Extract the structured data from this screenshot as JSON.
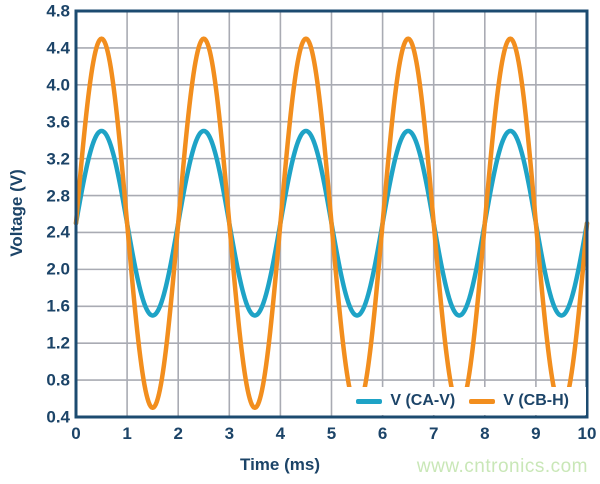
{
  "watermark": {
    "text": "www.cntronics.com",
    "color": "#c9e7b7"
  },
  "chart_data": {
    "type": "line",
    "title": "",
    "xlabel": "Time (ms)",
    "ylabel": "Voltage (V)",
    "xlim": [
      0,
      10
    ],
    "ylim": [
      0.4,
      4.8
    ],
    "x_ticks": [
      0,
      1,
      2,
      3,
      4,
      5,
      6,
      7,
      8,
      9,
      10
    ],
    "y_ticks": [
      0.4,
      0.8,
      1.2,
      1.6,
      2.0,
      2.4,
      2.8,
      3.2,
      3.6,
      4.0,
      4.4,
      4.8
    ],
    "grid": true,
    "legend_position": "inside-bottom-right",
    "colors": {
      "axis": "#1c4b70",
      "grid": "#a9abb3",
      "tick_text": "#1c4468",
      "background": "#ffffff"
    },
    "x_sample_ms": [
      0,
      0.25,
      0.5,
      0.75,
      1,
      1.25,
      1.5,
      1.75,
      2,
      2.25,
      2.5,
      2.75,
      3,
      3.25,
      3.5,
      3.75,
      4,
      4.25,
      4.5,
      4.75,
      5,
      5.25,
      5.5,
      5.75,
      6,
      6.25,
      6.5,
      6.75,
      7,
      7.25,
      7.5,
      7.75,
      8,
      8.25,
      8.5,
      8.75,
      9,
      9.25,
      9.5,
      9.75,
      10
    ],
    "series": [
      {
        "name": "V (CA-V)",
        "color": "#1ea3c6",
        "waveform": "sine",
        "offset_v": 2.5,
        "amplitude_v": 1.0,
        "period_ms": 2.0,
        "phase_deg": 0,
        "values": [
          2.5,
          3.207,
          3.5,
          3.207,
          2.5,
          1.793,
          1.5,
          1.793,
          2.5,
          3.207,
          3.5,
          3.207,
          2.5,
          1.793,
          1.5,
          1.793,
          2.5,
          3.207,
          3.5,
          3.207,
          2.5,
          1.793,
          1.5,
          1.793,
          2.5,
          3.207,
          3.5,
          3.207,
          2.5,
          1.793,
          1.5,
          1.793,
          2.5,
          3.207,
          3.5,
          3.207,
          2.5,
          1.793,
          1.5,
          1.793,
          2.5
        ]
      },
      {
        "name": "V (CB-H)",
        "color": "#f28e1e",
        "waveform": "sine",
        "offset_v": 2.5,
        "amplitude_v": 2.0,
        "period_ms": 2.0,
        "phase_deg": 0,
        "values": [
          2.5,
          3.914,
          4.5,
          3.914,
          2.5,
          1.086,
          0.5,
          1.086,
          2.5,
          3.914,
          4.5,
          3.914,
          2.5,
          1.086,
          0.5,
          1.086,
          2.5,
          3.914,
          4.5,
          3.914,
          2.5,
          1.086,
          0.5,
          1.086,
          2.5,
          3.914,
          4.5,
          3.914,
          2.5,
          1.086,
          0.5,
          1.086,
          2.5,
          3.914,
          4.5,
          3.914,
          2.5,
          1.086,
          0.5,
          1.086,
          2.5
        ]
      }
    ]
  }
}
